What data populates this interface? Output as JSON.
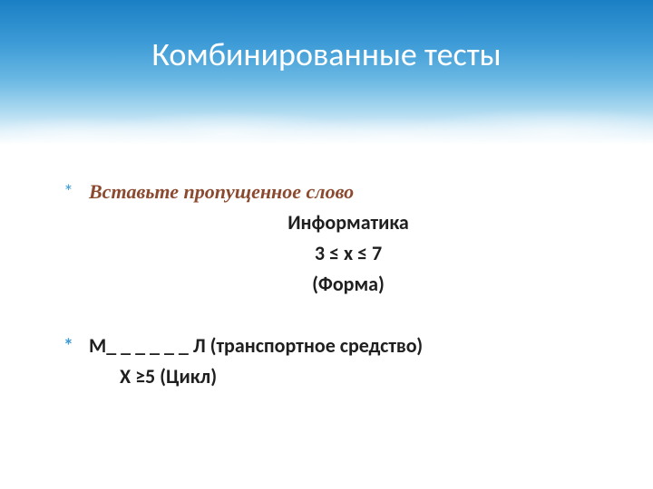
{
  "slide": {
    "title": "Комбинированные тесты",
    "title_color": "#ffffff",
    "title_fontsize": 36,
    "bullet_glyph": "*",
    "bullet_color": "#3d9bd6",
    "body_color": "#1f1f1f",
    "accent_color": "#8b4a2f",
    "body_fontsize": 22,
    "lines": {
      "l1": "Вставьте пропущенное слово",
      "l2": "Информатика",
      "l3": "3 ≤ x ≤ 7",
      "l4": "(Форма)",
      "l5": "М_ _ _ _ _ _  Л (транспортное средство)",
      "l6": "Х ≥5   (Цикл)"
    }
  },
  "background": {
    "gradient_top": "#1a7fc4",
    "gradient_bottom": "#ffffff"
  }
}
